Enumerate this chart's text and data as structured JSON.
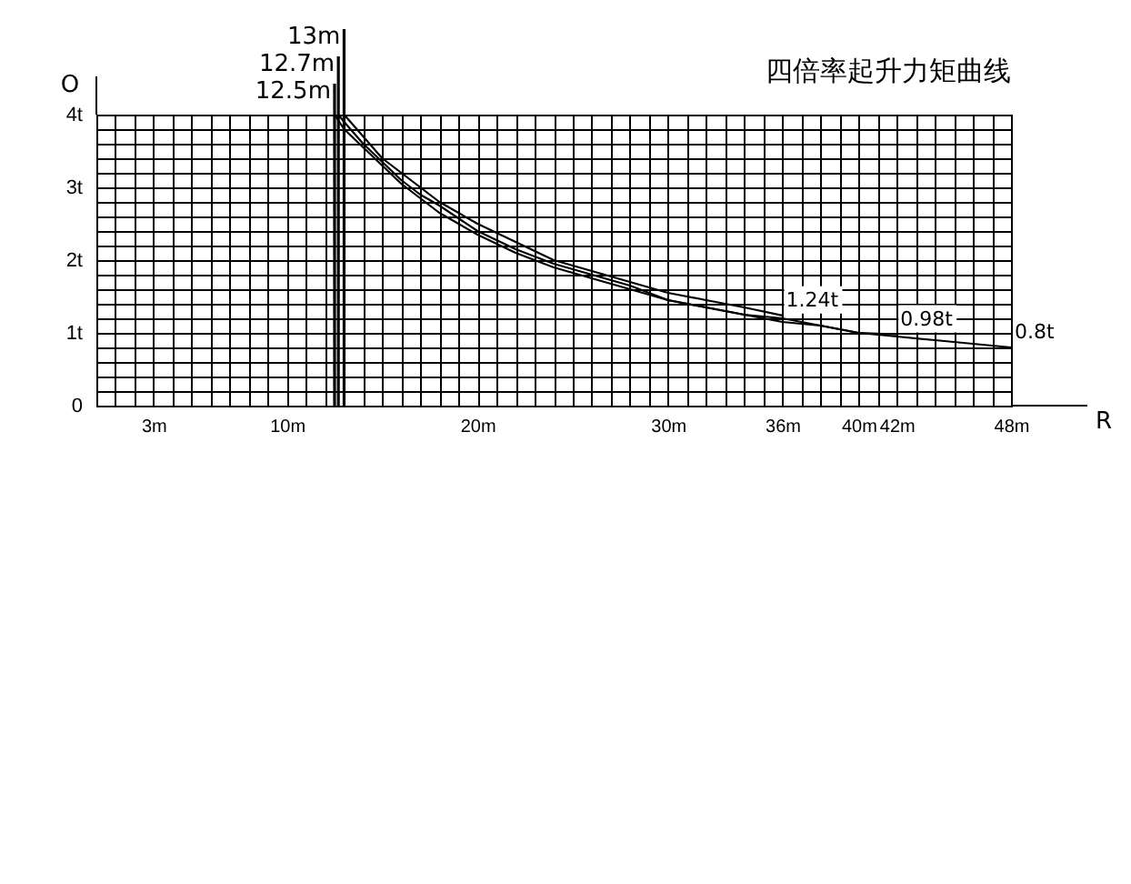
{
  "chart_data": {
    "type": "line",
    "title": "四倍率起升力矩曲线",
    "xlabel": "R",
    "ylabel": "O",
    "xlim": [
      0,
      48
    ],
    "ylim": [
      0,
      4
    ],
    "xticks": [
      {
        "value": 0,
        "label": null
      },
      {
        "value": 1,
        "label": null
      },
      {
        "value": 2,
        "label": null
      },
      {
        "value": 3,
        "label": "3m"
      },
      {
        "value": 4,
        "label": null
      },
      {
        "value": 5,
        "label": null
      },
      {
        "value": 6,
        "label": null
      },
      {
        "value": 7,
        "label": null
      },
      {
        "value": 8,
        "label": null
      },
      {
        "value": 9,
        "label": null
      },
      {
        "value": 10,
        "label": "10m"
      },
      {
        "value": 11,
        "label": null
      },
      {
        "value": 12,
        "label": null
      },
      {
        "value": 13,
        "label": null
      },
      {
        "value": 14,
        "label": null
      },
      {
        "value": 15,
        "label": null
      },
      {
        "value": 16,
        "label": null
      },
      {
        "value": 17,
        "label": null
      },
      {
        "value": 18,
        "label": null
      },
      {
        "value": 19,
        "label": null
      },
      {
        "value": 20,
        "label": "20m"
      },
      {
        "value": 21,
        "label": null
      },
      {
        "value": 22,
        "label": null
      },
      {
        "value": 23,
        "label": null
      },
      {
        "value": 24,
        "label": null
      },
      {
        "value": 25,
        "label": null
      },
      {
        "value": 26,
        "label": null
      },
      {
        "value": 27,
        "label": null
      },
      {
        "value": 28,
        "label": null
      },
      {
        "value": 29,
        "label": null
      },
      {
        "value": 30,
        "label": "30m"
      },
      {
        "value": 31,
        "label": null
      },
      {
        "value": 32,
        "label": null
      },
      {
        "value": 33,
        "label": null
      },
      {
        "value": 34,
        "label": null
      },
      {
        "value": 35,
        "label": null
      },
      {
        "value": 36,
        "label": "36m"
      },
      {
        "value": 37,
        "label": null
      },
      {
        "value": 38,
        "label": null
      },
      {
        "value": 39,
        "label": null
      },
      {
        "value": 40,
        "label": "40m"
      },
      {
        "value": 41,
        "label": null
      },
      {
        "value": 42,
        "label": "42m"
      },
      {
        "value": 43,
        "label": null
      },
      {
        "value": 44,
        "label": null
      },
      {
        "value": 45,
        "label": null
      },
      {
        "value": 46,
        "label": null
      },
      {
        "value": 47,
        "label": null
      },
      {
        "value": 48,
        "label": "48m"
      }
    ],
    "yticks": [
      0,
      {
        "value": 0.2,
        "label": null
      },
      {
        "value": 0.4,
        "label": null
      },
      {
        "value": 0.6,
        "label": null
      },
      {
        "value": 0.8,
        "label": null
      },
      {
        "value": 1,
        "label": "1t"
      },
      {
        "value": 1.2,
        "label": null
      },
      {
        "value": 1.4,
        "label": null
      },
      {
        "value": 1.6,
        "label": null
      },
      {
        "value": 1.8,
        "label": null
      },
      {
        "value": 2,
        "label": "2t"
      },
      {
        "value": 2.2,
        "label": null
      },
      {
        "value": 2.4,
        "label": null
      },
      {
        "value": 2.6,
        "label": null
      },
      {
        "value": 2.8,
        "label": null
      },
      {
        "value": 3,
        "label": "3t"
      },
      {
        "value": 3.2,
        "label": null
      },
      {
        "value": 3.4,
        "label": null
      },
      {
        "value": 3.6,
        "label": null
      },
      {
        "value": 3.8,
        "label": null
      },
      {
        "value": 4,
        "label": "4t"
      }
    ],
    "grid": true,
    "line_style": "solid",
    "series": [
      {
        "color": "#000000",
        "x": [
          12.5,
          13,
          14,
          15,
          16,
          17,
          18,
          20,
          22,
          24,
          26,
          28,
          30,
          32,
          34,
          36,
          38,
          40,
          42,
          44,
          46,
          48
        ],
        "values": [
          4,
          3.8,
          3.55,
          3.3,
          3.05,
          2.85,
          2.65,
          2.35,
          2.1,
          1.9,
          1.75,
          1.6,
          1.45,
          1.35,
          1.25,
          1.2,
          1.1,
          1.0,
          0.95,
          0.9,
          0.85,
          0.8
        ]
      },
      {
        "color": "#000000",
        "x": [
          12.7,
          13,
          14,
          15,
          16,
          17,
          18,
          20,
          22,
          24,
          26,
          28,
          30,
          32,
          34,
          36,
          38,
          40,
          42
        ],
        "values": [
          4,
          3.9,
          3.6,
          3.35,
          3.1,
          2.9,
          2.75,
          2.4,
          2.15,
          1.95,
          1.8,
          1.65,
          1.45,
          1.35,
          1.25,
          1.15,
          1.1,
          1.0,
          0.98
        ]
      },
      {
        "color": "#000000",
        "x": [
          13,
          14,
          15,
          16,
          17,
          18,
          20,
          22,
          24,
          26,
          28,
          30,
          32,
          34,
          36
        ],
        "values": [
          4,
          3.7,
          3.4,
          3.2,
          3.0,
          2.8,
          2.5,
          2.25,
          2.0,
          1.85,
          1.7,
          1.55,
          1.45,
          1.35,
          1.24
        ]
      }
    ],
    "ref_lines": [
      {
        "axis": "x",
        "value": 12.5,
        "label": "12.5m"
      },
      {
        "axis": "x",
        "value": 12.7,
        "label": "12.7m"
      },
      {
        "axis": "x",
        "value": 13,
        "label": "13m"
      }
    ],
    "annotations": [
      {
        "text": "1.24t",
        "x": 36,
        "y": 1.24
      },
      {
        "text": "0.98t",
        "x": 42,
        "y": 0.98
      },
      {
        "text": "0.8t",
        "x": 48,
        "y": 0.8
      }
    ]
  }
}
